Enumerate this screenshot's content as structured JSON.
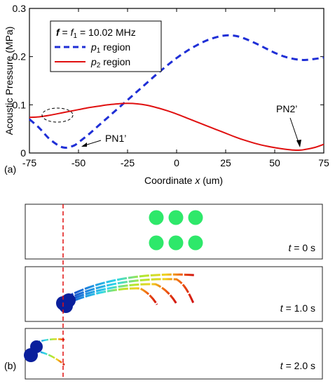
{
  "panel_a": {
    "label": "(a)",
    "legend": {
      "title_f": "f",
      "title_eq": " = ",
      "title_f1": "f",
      "title_f1_sub": "1",
      "title_value": " = 10.02 MHz",
      "entries": [
        {
          "p": "p",
          "sub": "1",
          "text": " region"
        },
        {
          "p": "p",
          "sub": "2",
          "text": " region"
        }
      ]
    },
    "annotations": {
      "pn1": "PN1’",
      "pn2": "PN2’"
    }
  },
  "chart_data": {
    "type": "line",
    "xlabel": "Coordinate x (um)",
    "xlabel_parts": {
      "pre": "Coordinate ",
      "var": "x",
      "post": " (um)"
    },
    "ylabel": "Acoustic Pressure (MPa)",
    "xlim": [
      -75,
      75
    ],
    "ylim": [
      0,
      0.3
    ],
    "x_ticks": [
      "-75",
      "-50",
      "-25",
      "0",
      "25",
      "50",
      "75"
    ],
    "y_ticks": [
      "0",
      "0.1",
      "0.2",
      "0.3"
    ],
    "series": [
      {
        "name": "p1 region",
        "color": "#1f2fd6",
        "style": "dashed",
        "x": [
          -75,
          -70,
          -65,
          -60,
          -57,
          -55,
          -52,
          -50,
          -45,
          -40,
          -35,
          -30,
          -25,
          -20,
          -15,
          -10,
          -5,
          0,
          5,
          10,
          15,
          20,
          25,
          30,
          35,
          40,
          45,
          50,
          55,
          60,
          65,
          70,
          75
        ],
        "y": [
          0.07,
          0.052,
          0.03,
          0.015,
          0.011,
          0.012,
          0.016,
          0.022,
          0.038,
          0.056,
          0.074,
          0.092,
          0.11,
          0.128,
          0.146,
          0.164,
          0.181,
          0.197,
          0.211,
          0.223,
          0.233,
          0.24,
          0.244,
          0.243,
          0.237,
          0.228,
          0.218,
          0.208,
          0.2,
          0.195,
          0.193,
          0.195,
          0.198
        ]
      },
      {
        "name": "p2 region",
        "color": "#e01010",
        "style": "solid",
        "x": [
          -75,
          -70,
          -65,
          -60,
          -55,
          -50,
          -45,
          -40,
          -35,
          -30,
          -25,
          -20,
          -15,
          -10,
          -5,
          0,
          5,
          10,
          15,
          20,
          25,
          30,
          35,
          40,
          45,
          50,
          55,
          60,
          63,
          65,
          70,
          75
        ],
        "y": [
          0.074,
          0.075,
          0.078,
          0.082,
          0.086,
          0.09,
          0.094,
          0.097,
          0.1,
          0.102,
          0.103,
          0.102,
          0.099,
          0.094,
          0.088,
          0.081,
          0.073,
          0.065,
          0.057,
          0.049,
          0.041,
          0.033,
          0.026,
          0.02,
          0.015,
          0.011,
          0.008,
          0.006,
          0.006,
          0.007,
          0.011,
          0.018
        ]
      }
    ]
  },
  "panel_b": {
    "label": "(b)",
    "rows": [
      {
        "t_var": "t",
        "t_text": " = 0 s"
      },
      {
        "t_var": "t",
        "t_text": " = 1.0 s"
      },
      {
        "t_var": "t",
        "t_text": " = 2.0 s"
      }
    ],
    "colors": {
      "particle_initial": "#2ee86a",
      "particle_trapped": "#0a1f9c",
      "guide_line": "#e01010"
    }
  }
}
